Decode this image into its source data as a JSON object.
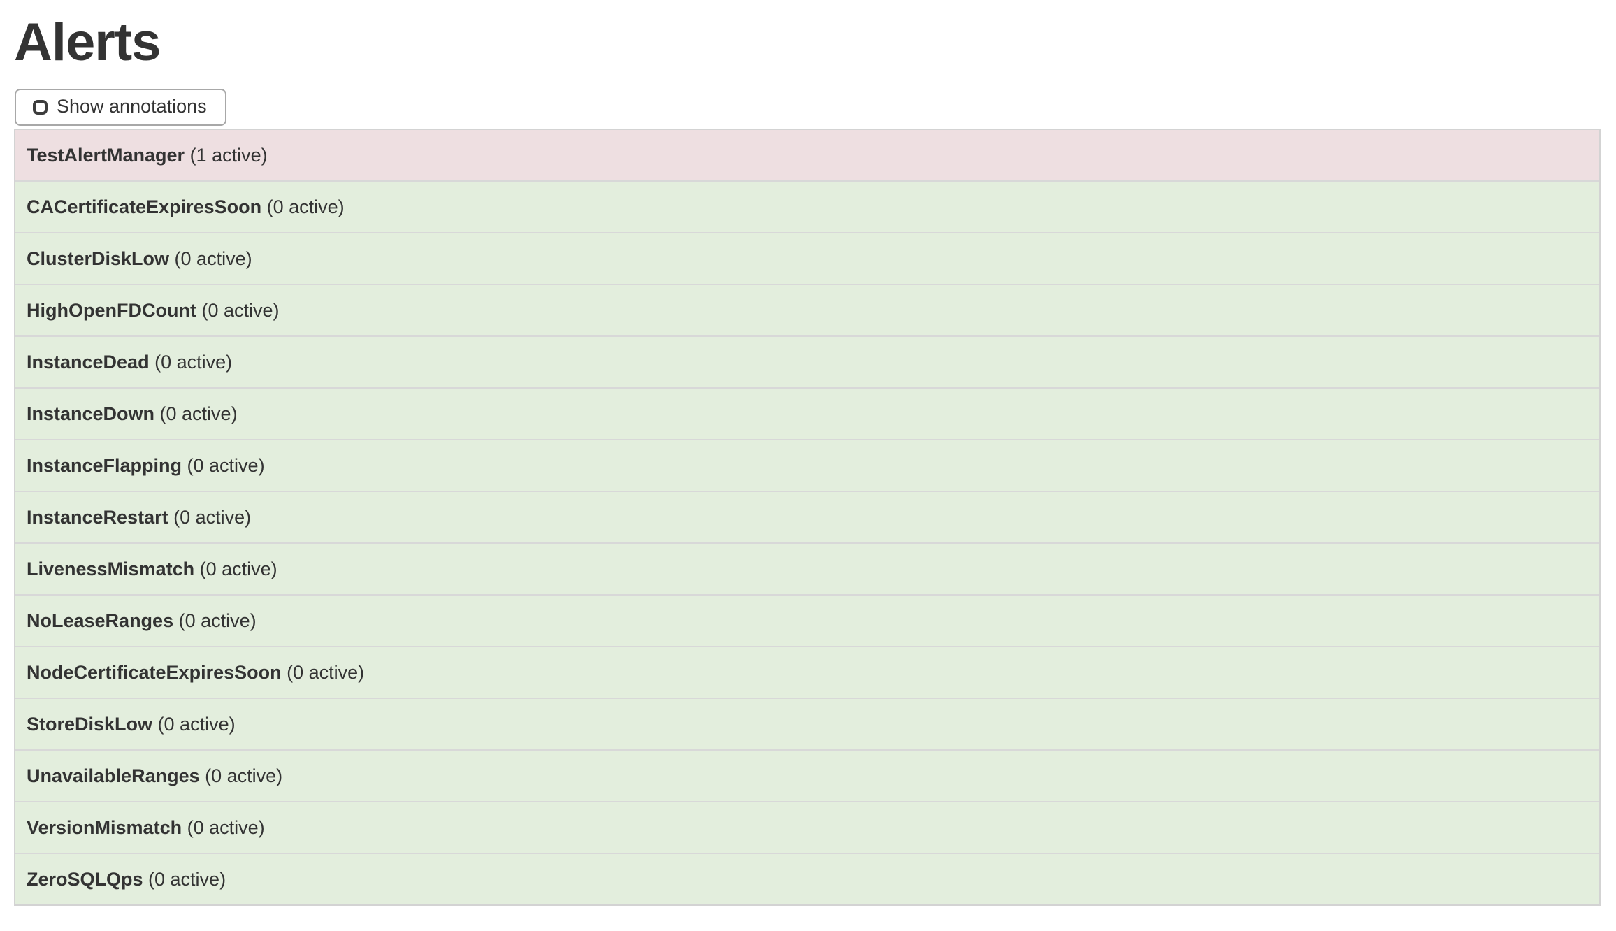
{
  "page": {
    "title": "Alerts"
  },
  "toolbar": {
    "show_annotations_label": "Show annotations",
    "checkbox_checked": false
  },
  "alerts": {
    "active_label": "active",
    "items": [
      {
        "name": "TestAlertManager",
        "active_count": 1,
        "state": "firing"
      },
      {
        "name": "CACertificateExpiresSoon",
        "active_count": 0,
        "state": "inactive"
      },
      {
        "name": "ClusterDiskLow",
        "active_count": 0,
        "state": "inactive"
      },
      {
        "name": "HighOpenFDCount",
        "active_count": 0,
        "state": "inactive"
      },
      {
        "name": "InstanceDead",
        "active_count": 0,
        "state": "inactive"
      },
      {
        "name": "InstanceDown",
        "active_count": 0,
        "state": "inactive"
      },
      {
        "name": "InstanceFlapping",
        "active_count": 0,
        "state": "inactive"
      },
      {
        "name": "InstanceRestart",
        "active_count": 0,
        "state": "inactive"
      },
      {
        "name": "LivenessMismatch",
        "active_count": 0,
        "state": "inactive"
      },
      {
        "name": "NoLeaseRanges",
        "active_count": 0,
        "state": "inactive"
      },
      {
        "name": "NodeCertificateExpiresSoon",
        "active_count": 0,
        "state": "inactive"
      },
      {
        "name": "StoreDiskLow",
        "active_count": 0,
        "state": "inactive"
      },
      {
        "name": "UnavailableRanges",
        "active_count": 0,
        "state": "inactive"
      },
      {
        "name": "VersionMismatch",
        "active_count": 0,
        "state": "inactive"
      },
      {
        "name": "ZeroSQLQps",
        "active_count": 0,
        "state": "inactive"
      }
    ]
  },
  "colors": {
    "firing_row_bg": "#eedfe1",
    "inactive_row_bg": "#e3eedd",
    "row_border": "#d8d8d8",
    "table_border": "#d3d3d3",
    "text": "#333333",
    "button_border": "#a8a8a8",
    "button_bg": "#ffffff",
    "page_bg": "#ffffff"
  }
}
